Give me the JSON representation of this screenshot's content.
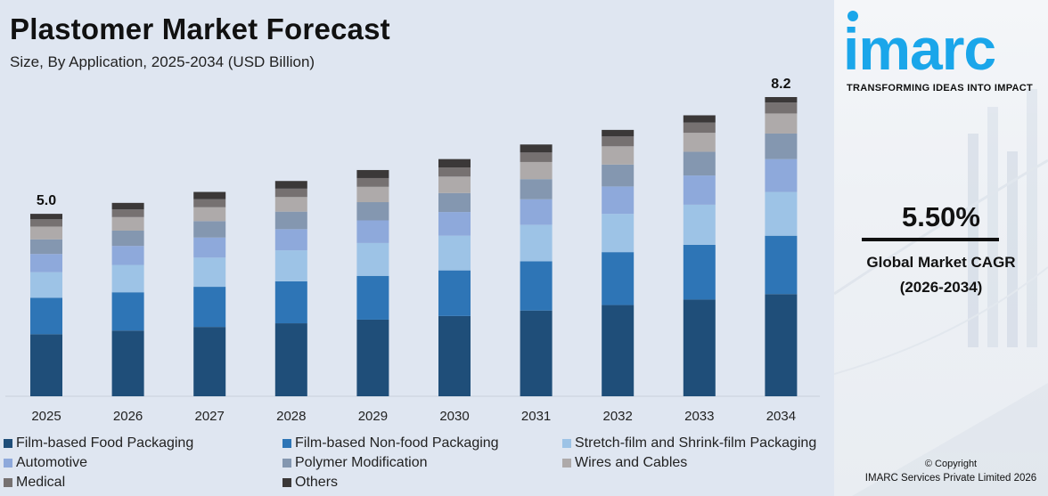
{
  "chart_data": {
    "type": "bar",
    "stacked": true,
    "title": "Plastomer Market Forecast",
    "subtitle": "Size, By Application, 2025-2034 (USD Billion)",
    "categories": [
      "2025",
      "2026",
      "2027",
      "2028",
      "2029",
      "2030",
      "2031",
      "2032",
      "2033",
      "2034"
    ],
    "totals": [
      5.0,
      5.3,
      5.6,
      5.9,
      6.2,
      6.5,
      6.9,
      7.3,
      7.7,
      8.2
    ],
    "total_labels": {
      "2025": "5.0",
      "2034": "8.2"
    },
    "ylim": [
      0,
      8.2
    ],
    "grid": false,
    "legend_position": "bottom",
    "series": [
      {
        "name": "Film-based Food Packaging",
        "color": "#1f4e79",
        "values": [
          1.7,
          1.8,
          1.9,
          2.0,
          2.1,
          2.2,
          2.35,
          2.5,
          2.65,
          2.8
        ]
      },
      {
        "name": "Film-based Non-food Packaging",
        "color": "#2e75b6",
        "values": [
          1.0,
          1.05,
          1.1,
          1.15,
          1.2,
          1.25,
          1.35,
          1.45,
          1.5,
          1.6
        ]
      },
      {
        "name": "Stretch-film and Shrink-film Packaging",
        "color": "#9dc3e6",
        "values": [
          0.7,
          0.75,
          0.8,
          0.85,
          0.9,
          0.95,
          1.0,
          1.05,
          1.1,
          1.2
        ]
      },
      {
        "name": "Automotive",
        "color": "#8ea9db",
        "values": [
          0.5,
          0.52,
          0.55,
          0.58,
          0.62,
          0.65,
          0.7,
          0.75,
          0.8,
          0.9
        ]
      },
      {
        "name": "Polymer Modification",
        "color": "#8497b0",
        "values": [
          0.4,
          0.42,
          0.45,
          0.48,
          0.5,
          0.52,
          0.55,
          0.6,
          0.65,
          0.7
        ]
      },
      {
        "name": "Wires and Cables",
        "color": "#aeaaaa",
        "values": [
          0.35,
          0.37,
          0.38,
          0.4,
          0.42,
          0.45,
          0.47,
          0.5,
          0.52,
          0.55
        ]
      },
      {
        "name": "Medical",
        "color": "#767171",
        "values": [
          0.2,
          0.21,
          0.22,
          0.23,
          0.24,
          0.25,
          0.26,
          0.27,
          0.28,
          0.3
        ]
      },
      {
        "name": "Others",
        "color": "#3b3838",
        "values": [
          0.15,
          0.18,
          0.2,
          0.21,
          0.22,
          0.23,
          0.22,
          0.18,
          0.2,
          0.15
        ]
      }
    ]
  },
  "brand": {
    "logo_text": "imarc",
    "tagline": "TRANSFORMING IDEAS INTO IMPACT",
    "accent_color": "#1aa6ea"
  },
  "cagr": {
    "value": "5.50%",
    "label": "Global Market CAGR",
    "period": "(2026-2034)"
  },
  "footer": {
    "copyright": "© Copyright",
    "company": "IMARC Services Private Limited 2026"
  }
}
